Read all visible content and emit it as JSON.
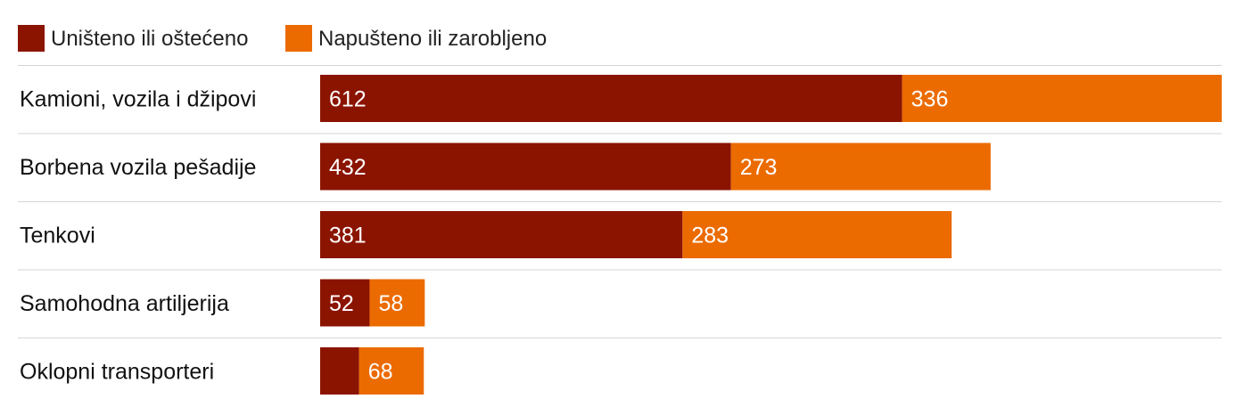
{
  "chart_data": {
    "type": "bar",
    "orientation": "horizontal",
    "stacked": true,
    "categories": [
      "Kamioni, vozila i džipovi",
      "Borbena vozila pešadije",
      "Tenkovi",
      "Samohodna artiljerija",
      "Oklopni transporteri"
    ],
    "series": [
      {
        "name": "Uništeno ili oštećeno",
        "color": "#8b1400",
        "values": [
          612,
          432,
          381,
          52,
          41
        ],
        "labels": [
          "612",
          "432",
          "381",
          "52",
          ""
        ]
      },
      {
        "name": "Napušteno ili zarobljeno",
        "color": "#eb6b00",
        "values": [
          336,
          273,
          283,
          58,
          68
        ],
        "labels": [
          "336",
          "273",
          "283",
          "58",
          "68"
        ]
      }
    ],
    "xlim": [
      0,
      948
    ],
    "legend": "top-left",
    "grid": false
  }
}
